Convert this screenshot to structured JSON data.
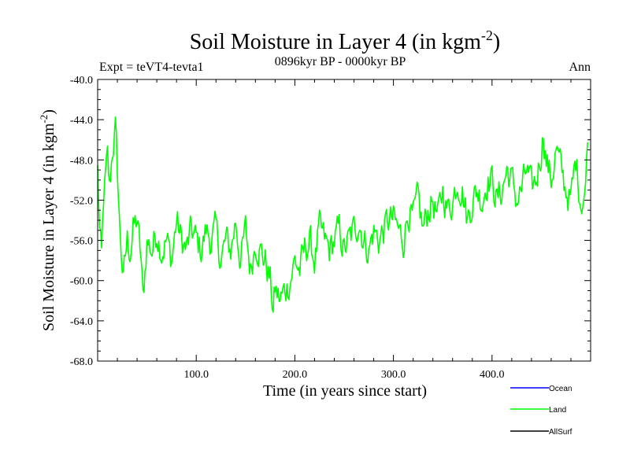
{
  "chart_data": {
    "type": "line",
    "title": "Soil Moisture in Layer 4 (in kgm",
    "title_superscript": "-2",
    "title_suffix": ")",
    "subtitle": "0896kyr BP - 0000kyr BP",
    "left_label": "Expt = teVT4-tevta1",
    "right_label": "Ann",
    "xlabel": "Time (in years since start)",
    "ylabel": "Soil Moisture in Layer 4 (in kgm",
    "ylabel_superscript": "-2",
    "ylabel_suffix": ")",
    "xlim": [
      0,
      500
    ],
    "ylim": [
      -68,
      -40
    ],
    "xticks": [
      100,
      200,
      300,
      400
    ],
    "xtick_labels": [
      "100.0",
      "200.0",
      "300.0",
      "400.0"
    ],
    "yticks": [
      -40,
      -44,
      -48,
      -52,
      -56,
      -60,
      -64,
      -68
    ],
    "ytick_labels": [
      "-40.0",
      "-44.0",
      "-48.0",
      "-52.0",
      "-56.0",
      "-60.0",
      "-64.0",
      "-68.0"
    ],
    "colors": {
      "Ocean": "#0000ff",
      "Land": "#00ff00",
      "AllSurf": "#000000"
    },
    "legend": [
      "Ocean",
      "Land",
      "AllSurf"
    ],
    "series": [
      {
        "name": "Land",
        "anchors_x": [
          0,
          2,
          4,
          6,
          8,
          10,
          12,
          15,
          18,
          20,
          22,
          24,
          26,
          28,
          30,
          33,
          36,
          40,
          44,
          46,
          50,
          55,
          60,
          65,
          70,
          75,
          80,
          85,
          90,
          95,
          100,
          105,
          110,
          115,
          120,
          125,
          130,
          135,
          140,
          145,
          150,
          155,
          160,
          165,
          170,
          175,
          178,
          180,
          185,
          190,
          195,
          200,
          205,
          210,
          215,
          220,
          225,
          230,
          235,
          240,
          245,
          250,
          255,
          260,
          265,
          270,
          275,
          280,
          285,
          290,
          295,
          300,
          305,
          310,
          315,
          320,
          325,
          330,
          335,
          340,
          345,
          350,
          355,
          360,
          365,
          370,
          375,
          380,
          385,
          390,
          395,
          400,
          405,
          410,
          415,
          420,
          425,
          430,
          435,
          440,
          445,
          450,
          452,
          455,
          460,
          465,
          470,
          475,
          480,
          485,
          490,
          495,
          497
        ],
        "anchors_y": [
          -49,
          -55,
          -58,
          -52,
          -50,
          -48,
          -51,
          -47,
          -45,
          -49,
          -54,
          -57,
          -60,
          -58,
          -56,
          -57,
          -55,
          -54,
          -58,
          -62,
          -56,
          -57,
          -55,
          -57,
          -56,
          -58,
          -54,
          -56,
          -57,
          -55,
          -56,
          -57,
          -55,
          -56,
          -55,
          -58,
          -56,
          -57,
          -54,
          -58,
          -55,
          -59,
          -56,
          -57,
          -58,
          -60,
          -63,
          -61,
          -62,
          -61,
          -60,
          -58,
          -59,
          -57,
          -56,
          -58,
          -55,
          -56,
          -57,
          -56,
          -55,
          -57,
          -56,
          -55,
          -54,
          -56,
          -57,
          -55,
          -56,
          -55,
          -54,
          -54,
          -55,
          -56,
          -53,
          -54,
          -52,
          -55,
          -53,
          -52,
          -54,
          -51,
          -53,
          -52,
          -50,
          -51,
          -54,
          -52,
          -51,
          -52,
          -50,
          -50,
          -52,
          -51,
          -49,
          -50,
          -52,
          -51,
          -49,
          -51,
          -50,
          -47,
          -45,
          -48,
          -50,
          -47,
          -49,
          -51,
          -52,
          -48,
          -52,
          -51,
          -45
        ],
        "noise_amplitude": 1.5
      },
      {
        "name": "Ocean",
        "anchors_x": [],
        "anchors_y": []
      },
      {
        "name": "AllSurf",
        "anchors_x": [],
        "anchors_y": []
      }
    ]
  }
}
